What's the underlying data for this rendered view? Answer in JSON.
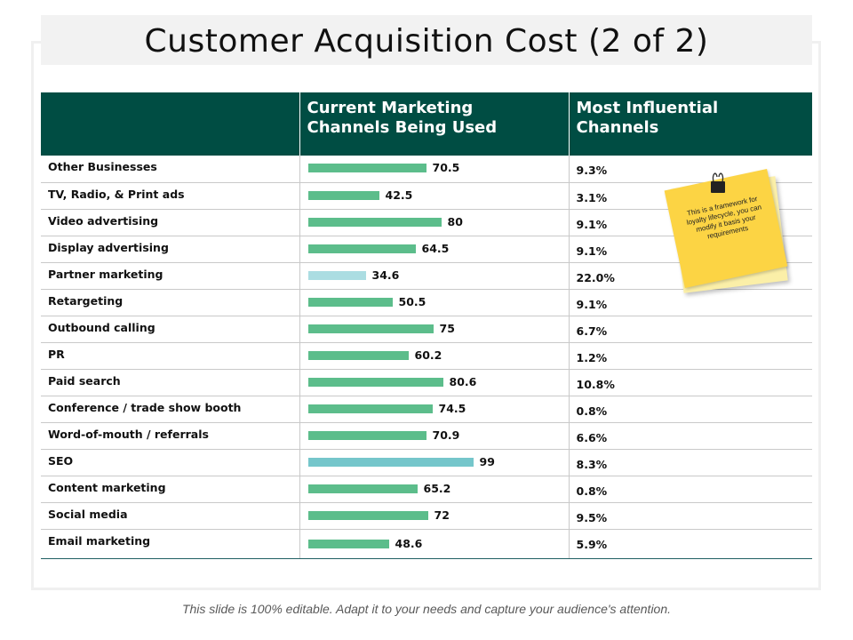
{
  "title": "Customer Acquisition Cost (2 of 2)",
  "footer": "This slide is 100% editable. Adapt it to your needs and capture your audience's attention.",
  "sticky_note": "This is a framework for loyalty lifecycle, you can modify it basis your requirements",
  "colors": {
    "header_bg": "#004d43",
    "bar_default": "#5cbd8b",
    "bar_light": "#abdde2",
    "bar_accent": "#75c6cb"
  },
  "chart_data": {
    "type": "table",
    "title": "Customer Acquisition Cost (2 of 2)",
    "columns": [
      "",
      "Current Marketing Channels Being Used",
      "Most Influential Channels"
    ],
    "categories": [
      "Other Businesses",
      "TV, Radio, & Print ads",
      "Video advertising",
      "Display advertising",
      "Partner marketing",
      "Retargeting",
      "Outbound calling",
      "PR",
      "Paid search",
      "Conference / trade show booth",
      "Word-of-mouth / referrals",
      "SEO",
      "Content marketing",
      "Social media",
      "Email marketing"
    ],
    "series": [
      {
        "name": "Current Marketing Channels Being Used",
        "type": "bar",
        "values": [
          70.5,
          42.5,
          80,
          64.5,
          34.6,
          50.5,
          75,
          60.2,
          80.6,
          74.5,
          70.9,
          99,
          65.2,
          72,
          48.6
        ],
        "labels": [
          "70.5",
          "42.5",
          "80",
          "64.5",
          "34.6",
          "50.5",
          "75",
          "60.2",
          "80.6",
          "74.5",
          "70.9",
          "99",
          "65.2",
          "72",
          "48.6"
        ],
        "bar_colors": [
          "#5cbd8b",
          "#5cbd8b",
          "#5cbd8b",
          "#5cbd8b",
          "#abdde2",
          "#5cbd8b",
          "#5cbd8b",
          "#5cbd8b",
          "#5cbd8b",
          "#5cbd8b",
          "#5cbd8b",
          "#75c6cb",
          "#5cbd8b",
          "#5cbd8b",
          "#5cbd8b"
        ]
      },
      {
        "name": "Most Influential Channels",
        "type": "text",
        "values": [
          9.3,
          3.1,
          9.1,
          9.1,
          22.0,
          9.1,
          6.7,
          1.2,
          10.8,
          0.8,
          6.6,
          8.3,
          0.8,
          9.5,
          5.9
        ],
        "labels": [
          "9.3%",
          "3.1%",
          "9.1%",
          "9.1%",
          "22.0%",
          "9.1%",
          "6.7%",
          "1.2%",
          "10.8%",
          "0.8%",
          "6.6%",
          "8.3%",
          "0.8%",
          "9.5%",
          "5.9%"
        ]
      }
    ],
    "bar_max": 100
  }
}
